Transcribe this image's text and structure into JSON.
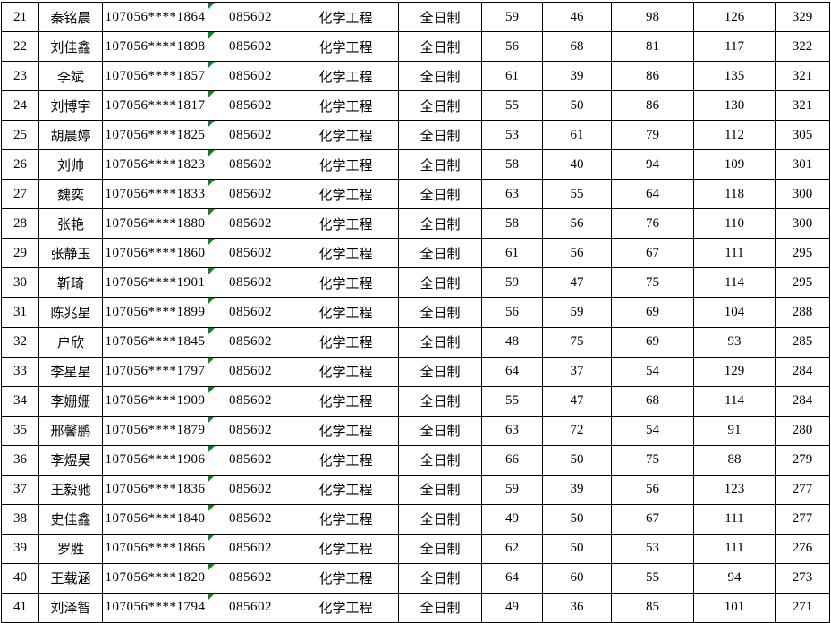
{
  "table": {
    "rows": [
      {
        "no": "21",
        "name": "秦铭晨",
        "candidate_id": "107056****1864",
        "major_code": "085602",
        "major_name": "化学工程",
        "study_mode": "全日制",
        "score1": "59",
        "score2": "46",
        "score3": "98",
        "score4": "126",
        "total": "329"
      },
      {
        "no": "22",
        "name": "刘佳鑫",
        "candidate_id": "107056****1898",
        "major_code": "085602",
        "major_name": "化学工程",
        "study_mode": "全日制",
        "score1": "56",
        "score2": "68",
        "score3": "81",
        "score4": "117",
        "total": "322"
      },
      {
        "no": "23",
        "name": "李斌",
        "candidate_id": "107056****1857",
        "major_code": "085602",
        "major_name": "化学工程",
        "study_mode": "全日制",
        "score1": "61",
        "score2": "39",
        "score3": "86",
        "score4": "135",
        "total": "321"
      },
      {
        "no": "24",
        "name": "刘博宇",
        "candidate_id": "107056****1817",
        "major_code": "085602",
        "major_name": "化学工程",
        "study_mode": "全日制",
        "score1": "55",
        "score2": "50",
        "score3": "86",
        "score4": "130",
        "total": "321"
      },
      {
        "no": "25",
        "name": "胡晨婷",
        "candidate_id": "107056****1825",
        "major_code": "085602",
        "major_name": "化学工程",
        "study_mode": "全日制",
        "score1": "53",
        "score2": "61",
        "score3": "79",
        "score4": "112",
        "total": "305"
      },
      {
        "no": "26",
        "name": "刘帅",
        "candidate_id": "107056****1823",
        "major_code": "085602",
        "major_name": "化学工程",
        "study_mode": "全日制",
        "score1": "58",
        "score2": "40",
        "score3": "94",
        "score4": "109",
        "total": "301"
      },
      {
        "no": "27",
        "name": "魏奕",
        "candidate_id": "107056****1833",
        "major_code": "085602",
        "major_name": "化学工程",
        "study_mode": "全日制",
        "score1": "63",
        "score2": "55",
        "score3": "64",
        "score4": "118",
        "total": "300"
      },
      {
        "no": "28",
        "name": "张艳",
        "candidate_id": "107056****1880",
        "major_code": "085602",
        "major_name": "化学工程",
        "study_mode": "全日制",
        "score1": "58",
        "score2": "56",
        "score3": "76",
        "score4": "110",
        "total": "300"
      },
      {
        "no": "29",
        "name": "张静玉",
        "candidate_id": "107056****1860",
        "major_code": "085602",
        "major_name": "化学工程",
        "study_mode": "全日制",
        "score1": "61",
        "score2": "56",
        "score3": "67",
        "score4": "111",
        "total": "295"
      },
      {
        "no": "30",
        "name": "靳琦",
        "candidate_id": "107056****1901",
        "major_code": "085602",
        "major_name": "化学工程",
        "study_mode": "全日制",
        "score1": "59",
        "score2": "47",
        "score3": "75",
        "score4": "114",
        "total": "295"
      },
      {
        "no": "31",
        "name": "陈兆星",
        "candidate_id": "107056****1899",
        "major_code": "085602",
        "major_name": "化学工程",
        "study_mode": "全日制",
        "score1": "56",
        "score2": "59",
        "score3": "69",
        "score4": "104",
        "total": "288"
      },
      {
        "no": "32",
        "name": "户欣",
        "candidate_id": "107056****1845",
        "major_code": "085602",
        "major_name": "化学工程",
        "study_mode": "全日制",
        "score1": "48",
        "score2": "75",
        "score3": "69",
        "score4": "93",
        "total": "285"
      },
      {
        "no": "33",
        "name": "李星星",
        "candidate_id": "107056****1797",
        "major_code": "085602",
        "major_name": "化学工程",
        "study_mode": "全日制",
        "score1": "64",
        "score2": "37",
        "score3": "54",
        "score4": "129",
        "total": "284"
      },
      {
        "no": "34",
        "name": "李姗姗",
        "candidate_id": "107056****1909",
        "major_code": "085602",
        "major_name": "化学工程",
        "study_mode": "全日制",
        "score1": "55",
        "score2": "47",
        "score3": "68",
        "score4": "114",
        "total": "284"
      },
      {
        "no": "35",
        "name": "邢馨鹏",
        "candidate_id": "107056****1879",
        "major_code": "085602",
        "major_name": "化学工程",
        "study_mode": "全日制",
        "score1": "63",
        "score2": "72",
        "score3": "54",
        "score4": "91",
        "total": "280"
      },
      {
        "no": "36",
        "name": "李煜昊",
        "candidate_id": "107056****1906",
        "major_code": "085602",
        "major_name": "化学工程",
        "study_mode": "全日制",
        "score1": "66",
        "score2": "50",
        "score3": "75",
        "score4": "88",
        "total": "279"
      },
      {
        "no": "37",
        "name": "王毅驰",
        "candidate_id": "107056****1836",
        "major_code": "085602",
        "major_name": "化学工程",
        "study_mode": "全日制",
        "score1": "59",
        "score2": "39",
        "score3": "56",
        "score4": "123",
        "total": "277"
      },
      {
        "no": "38",
        "name": "史佳鑫",
        "candidate_id": "107056****1840",
        "major_code": "085602",
        "major_name": "化学工程",
        "study_mode": "全日制",
        "score1": "49",
        "score2": "50",
        "score3": "67",
        "score4": "111",
        "total": "277"
      },
      {
        "no": "39",
        "name": "罗胜",
        "candidate_id": "107056****1866",
        "major_code": "085602",
        "major_name": "化学工程",
        "study_mode": "全日制",
        "score1": "62",
        "score2": "50",
        "score3": "53",
        "score4": "111",
        "total": "276"
      },
      {
        "no": "40",
        "name": "王载涵",
        "candidate_id": "107056****1820",
        "major_code": "085602",
        "major_name": "化学工程",
        "study_mode": "全日制",
        "score1": "64",
        "score2": "60",
        "score3": "55",
        "score4": "94",
        "total": "273"
      },
      {
        "no": "41",
        "name": "刘泽智",
        "candidate_id": "107056****1794",
        "major_code": "085602",
        "major_name": "化学工程",
        "study_mode": "全日制",
        "score1": "49",
        "score2": "36",
        "score3": "85",
        "score4": "101",
        "total": "271"
      }
    ]
  },
  "icons": {
    "number_stored_as_text_indicator": "green-triangle"
  },
  "colors": {
    "grid_line": "#000000",
    "background": "#ffffff",
    "text": "#000000",
    "indicator_green": "#1a7d2e"
  }
}
